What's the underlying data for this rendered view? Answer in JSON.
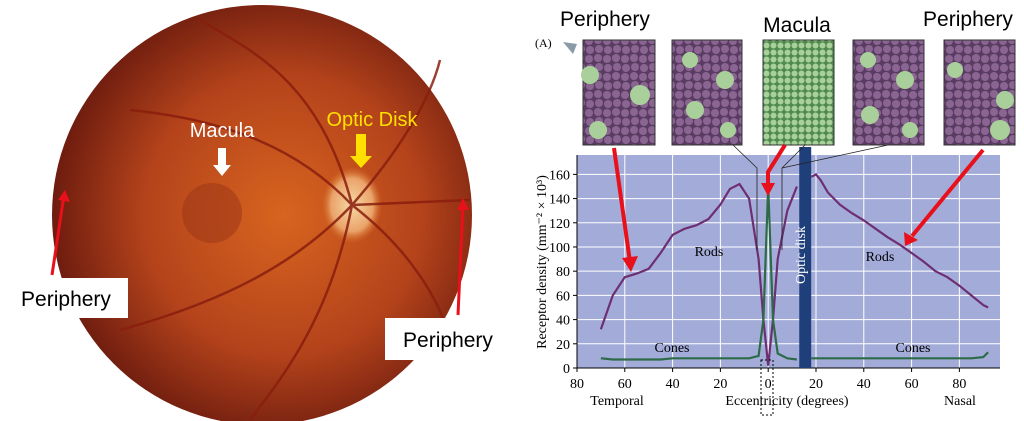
{
  "photo_labels": {
    "macula": "Macula",
    "optic_disk": "Optic Disk",
    "periphery_left": "Periphery",
    "periphery_right": "Periphery"
  },
  "chart_data": {
    "type": "line",
    "panel_label": "(A)",
    "mosaic_labels": [
      "Periphery",
      "Macula",
      "Periphery"
    ],
    "x_label": "Eccentricity (degrees)",
    "y_label": "Receptor density (mm⁻² × 10³)",
    "x_side_labels": [
      "Temporal",
      "Nasal"
    ],
    "optic_disk": {
      "label": "Optic disk",
      "x": [
        13,
        18
      ]
    },
    "xlim": [
      -80,
      97
    ],
    "ylim": [
      0,
      176
    ],
    "xticks": [
      {
        "value": -80,
        "label": "80"
      },
      {
        "value": -60,
        "label": "60"
      },
      {
        "value": -40,
        "label": "40"
      },
      {
        "value": -20,
        "label": "20"
      },
      0,
      20,
      40,
      60,
      80
    ],
    "yticks": [
      0,
      20,
      40,
      60,
      80,
      100,
      120,
      140,
      160
    ],
    "grid": true,
    "x": [
      -70,
      -65,
      -60,
      -55,
      -50,
      -45,
      -40,
      -35,
      -30,
      -25,
      -20,
      -16,
      -12,
      -8,
      -4,
      -2,
      0,
      2,
      4,
      8,
      12,
      15,
      18,
      20,
      22,
      25,
      30,
      35,
      40,
      45,
      50,
      55,
      60,
      65,
      70,
      75,
      80,
      85,
      90,
      92
    ],
    "series": [
      {
        "name": "Rods",
        "color": "#6e2f72",
        "values": [
          32,
          60,
          75,
          78,
          82,
          95,
          110,
          115,
          118,
          123,
          135,
          148,
          152,
          140,
          90,
          40,
          2,
          40,
          90,
          130,
          150,
          null,
          158,
          160,
          155,
          145,
          135,
          128,
          122,
          115,
          108,
          102,
          95,
          88,
          80,
          75,
          68,
          60,
          52,
          50
        ]
      },
      {
        "name": "Cones",
        "color": "#2d6b48",
        "values": [
          8,
          7,
          7,
          7,
          7,
          7,
          8,
          8,
          8,
          8,
          8,
          8,
          8,
          8,
          10,
          40,
          150,
          40,
          12,
          8,
          7,
          null,
          8,
          8,
          8,
          8,
          8,
          8,
          8,
          8,
          8,
          8,
          8,
          8,
          8,
          8,
          8,
          8,
          9,
          13
        ]
      }
    ]
  }
}
